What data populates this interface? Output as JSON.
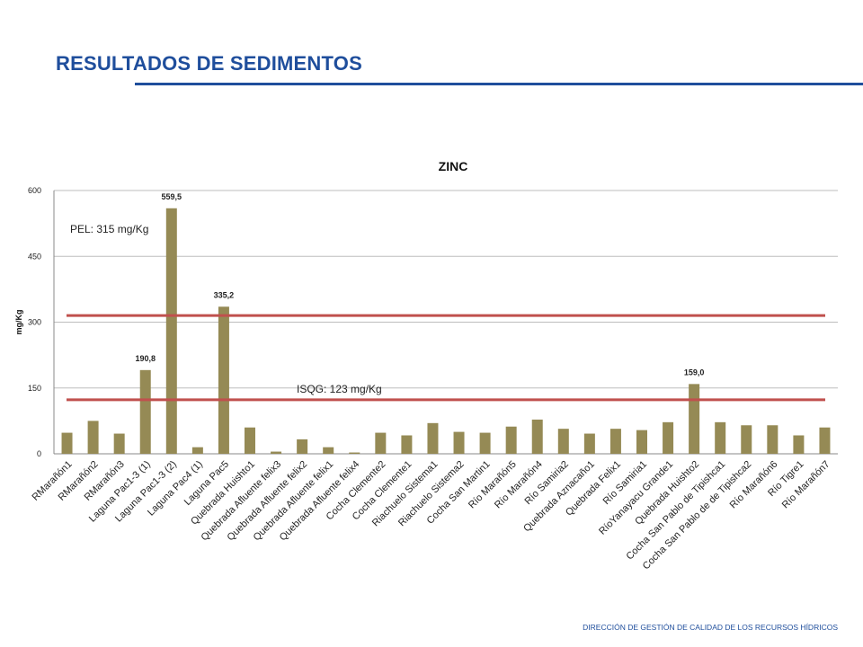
{
  "page": {
    "title": "RESULTADOS DE SEDIMENTOS",
    "footer": "DIRECCIÓN DE GESTIÓN DE CALIDAD DE LOS RECURSOS HÍDRICOS"
  },
  "colors": {
    "title": "#1f4e9c",
    "bar": "#958a55",
    "threshold": "#c0504d",
    "grid": "#bdbdbd"
  },
  "chart_data": {
    "type": "bar",
    "title": "ZINC",
    "xlabel": "",
    "ylabel": "mg/Kg",
    "ylim": [
      0,
      600
    ],
    "yticks": [
      0,
      150,
      300,
      450,
      600
    ],
    "grid": true,
    "categories": [
      "RMarañón1",
      "RMarañón2",
      "RMarañón3",
      "Laguna Pac1-3 (1)",
      "Laguna Pac1-3 (2)",
      "Laguna Pac4 (1)",
      "Laguna Pac5",
      "Quebrada Huishto1",
      "Quebrada Afluente felix3",
      "Quebrada Afluente felix2",
      "Quebrada Afluente felix1",
      "Quebrada Afluente felix4",
      "Cocha Clemente2",
      "Cocha Clemente1",
      "Riachuelo Sistema1",
      "Riachuelo Sistema2",
      "Cocha San Martin1",
      "Río Marañón5",
      "Río Marañón4",
      "Río Samiria2",
      "Quebrada Aznacaño1",
      "Quebrada Felix1",
      "Río Samiria1",
      "RíoYanayacu Grande1",
      "Quebrada Huishto2",
      "Cocha San Pablo de Tipishca1",
      "Cocha San Pablo de de Tipishca2",
      "Río Marañón6",
      "Río Tigre1",
      "Río Marañón7"
    ],
    "values": [
      48,
      75,
      46,
      190.8,
      559.5,
      15,
      335.2,
      60,
      5,
      33,
      15,
      3,
      48,
      42,
      70,
      50,
      48,
      62,
      78,
      57,
      46,
      57,
      54,
      72,
      159.0,
      72,
      65,
      65,
      42,
      60
    ],
    "data_labels": [
      {
        "index": 3,
        "text": "190,8"
      },
      {
        "index": 4,
        "text": "559,5"
      },
      {
        "index": 6,
        "text": "335,2"
      },
      {
        "index": 24,
        "text": "159,0"
      }
    ],
    "thresholds": [
      {
        "label": "PEL: 315 mg/Kg",
        "value": 315
      },
      {
        "label": "ISQG: 123 mg/Kg",
        "value": 123
      }
    ]
  }
}
